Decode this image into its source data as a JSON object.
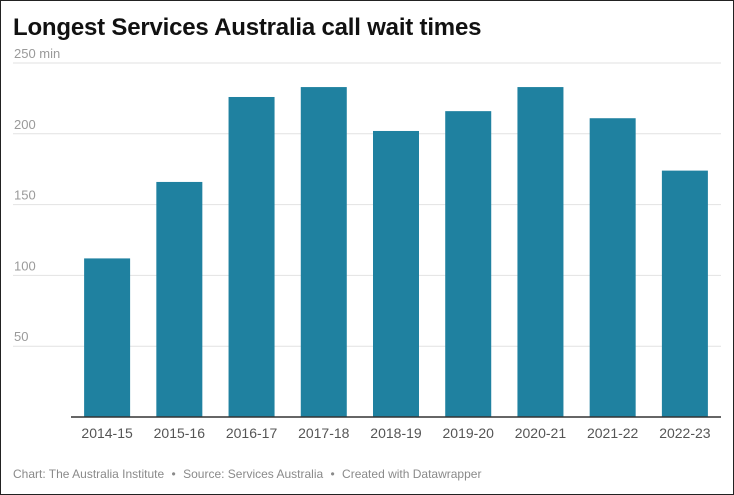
{
  "chart_data": {
    "type": "bar",
    "title": "Longest Services Australia call wait times",
    "categories": [
      "2014-15",
      "2015-16",
      "2016-17",
      "2017-18",
      "2018-19",
      "2019-20",
      "2020-21",
      "2021-22",
      "2022-23"
    ],
    "values": [
      112,
      166,
      226,
      233,
      202,
      216,
      233,
      211,
      174
    ],
    "ylim": [
      0,
      250
    ],
    "yticks": [
      50,
      100,
      150,
      200,
      250
    ],
    "ytick_labels": [
      "50",
      "100",
      "150",
      "200",
      "250 min"
    ],
    "xlabel": "",
    "ylabel": "",
    "grid": true,
    "bar_color": "#1f81a0"
  },
  "footer": {
    "chart_credit": "Chart: The Australia Institute",
    "source": "Source: Services Australia",
    "created_with": "Created with Datawrapper",
    "separator": "•"
  }
}
